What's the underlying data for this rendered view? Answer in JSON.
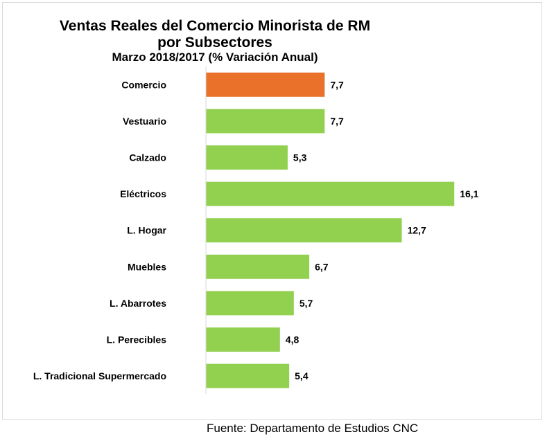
{
  "chart_data": {
    "type": "bar",
    "orientation": "horizontal",
    "title": "Ventas Reales del Comercio Minorista de RM",
    "title_line2": "por Subsectores",
    "subtitle": "Marzo 2018/2017 (% Variación Anual)",
    "categories": [
      "Comercio",
      "Vestuario",
      "Calzado",
      "Eléctricos",
      "L. Hogar",
      "Muebles",
      "L. Abarrotes",
      "L. Perecibles",
      "L. Tradicional Supermercado"
    ],
    "values": [
      7.7,
      7.7,
      5.3,
      16.1,
      12.7,
      6.7,
      5.7,
      4.8,
      5.4
    ],
    "value_labels": [
      "7,7",
      "7,7",
      "5,3",
      "16,1",
      "12,7",
      "6,7",
      "5,7",
      "4,8",
      "5,4"
    ],
    "bar_colors": [
      "#e9712a",
      "#92d050",
      "#92d050",
      "#92d050",
      "#92d050",
      "#92d050",
      "#92d050",
      "#92d050",
      "#92d050"
    ],
    "xlim": [
      0,
      17.5
    ],
    "grid": false,
    "legend": "none"
  },
  "source": "Fuente: Departamento de Estudios CNC"
}
